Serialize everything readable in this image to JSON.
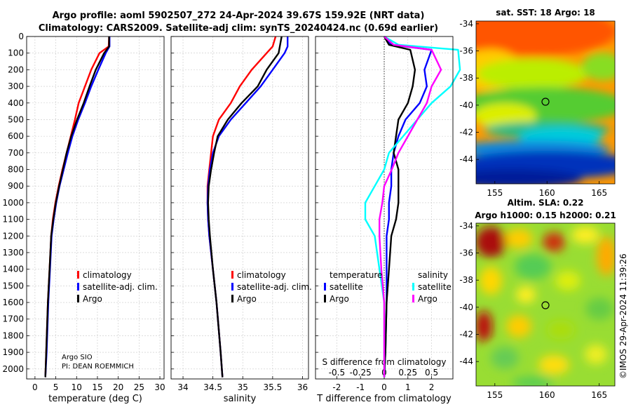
{
  "header": {
    "title_line1": "Argo profile: aoml 5902507_272 24-Apr-2024 39.67S 159.92E (NRT data)",
    "title_line2": "Climatology: CARS2009. Satellite-adj clim: synTS_20240424.nc (0.69d earlier)"
  },
  "credit": {
    "line1": "Argo SIO",
    "line2": "PI: DEAN ROEMMICH"
  },
  "timestamp": "©IMOS 29-Apr-2024 11:39:26",
  "colors": {
    "climatology": "#ff0000",
    "satellite": "#0000ff",
    "argo": "#000000",
    "sat_salinity": "#00ffff",
    "argo_salinity": "#ff00ff"
  },
  "chart_data": [
    {
      "type": "line",
      "title": "",
      "xlabel": "temperature (deg C)",
      "ylabel": "",
      "xlim": [
        -2,
        31
      ],
      "ylim": [
        2060,
        0
      ],
      "xticks": [
        "0",
        "5",
        "10",
        "15",
        "20",
        "25",
        "30"
      ],
      "yticks": [
        "0",
        "100",
        "200",
        "300",
        "400",
        "500",
        "600",
        "700",
        "800",
        "900",
        "1000",
        "1100",
        "1200",
        "1300",
        "1400",
        "1500",
        "1600",
        "1700",
        "1800",
        "1900",
        "2000"
      ],
      "legend": [
        "climatology",
        "satellite-adj. clim.",
        "Argo"
      ],
      "series": [
        {
          "name": "climatology",
          "x": [
            17.8,
            17.7,
            15.5,
            13.5,
            12.0,
            10.5,
            9.6,
            8.6,
            7.6,
            6.6,
            5.7,
            4.9,
            4.3,
            3.9,
            3.5,
            3.1,
            2.7,
            2.5
          ],
          "y": [
            0,
            60,
            100,
            200,
            300,
            400,
            500,
            600,
            700,
            800,
            900,
            1000,
            1100,
            1200,
            1400,
            1600,
            1900,
            2050
          ]
        },
        {
          "name": "satellite-adj. clim.",
          "x": [
            17.9,
            17.9,
            17.0,
            15.2,
            13.5,
            12.0,
            10.4,
            9.0,
            7.9,
            6.9,
            5.9,
            5.1,
            4.5,
            4.0,
            3.6,
            3.2,
            2.8,
            2.5
          ],
          "y": [
            0,
            60,
            100,
            200,
            300,
            400,
            500,
            600,
            700,
            800,
            900,
            1000,
            1100,
            1200,
            1400,
            1600,
            1900,
            2050
          ]
        },
        {
          "name": "Argo",
          "x": [
            17.8,
            17.8,
            16.6,
            14.6,
            13.1,
            11.7,
            10.1,
            8.7,
            7.6,
            6.7,
            5.8,
            5.0,
            4.4,
            3.9,
            3.5,
            3.1,
            2.7,
            2.5
          ],
          "y": [
            0,
            60,
            100,
            200,
            300,
            400,
            500,
            600,
            700,
            800,
            900,
            1000,
            1100,
            1200,
            1400,
            1600,
            1900,
            2050
          ]
        }
      ]
    },
    {
      "type": "line",
      "title": "",
      "xlabel": "salinity",
      "ylabel": "",
      "xlim": [
        33.8,
        36.1
      ],
      "ylim": [
        2060,
        0
      ],
      "xticks": [
        "34",
        "34.5",
        "35",
        "35.5",
        "36"
      ],
      "legend": [
        "climatology",
        "satellite-adj. clim.",
        "Argo"
      ],
      "series": [
        {
          "name": "climatology",
          "x": [
            35.55,
            35.5,
            35.4,
            35.15,
            34.95,
            34.8,
            34.6,
            34.5,
            34.47,
            34.44,
            34.41,
            34.41,
            34.42,
            34.44,
            34.5,
            34.56,
            34.63,
            34.66
          ],
          "y": [
            0,
            60,
            100,
            200,
            300,
            400,
            500,
            600,
            700,
            800,
            900,
            1000,
            1100,
            1200,
            1400,
            1600,
            1900,
            2050
          ]
        },
        {
          "name": "satellite-adj. clim.",
          "x": [
            35.75,
            35.75,
            35.7,
            35.5,
            35.3,
            35.05,
            34.8,
            34.6,
            34.5,
            34.45,
            34.42,
            34.41,
            34.42,
            34.44,
            34.5,
            34.56,
            34.63,
            34.66
          ],
          "y": [
            0,
            60,
            100,
            200,
            300,
            400,
            500,
            600,
            700,
            800,
            900,
            1000,
            1100,
            1200,
            1400,
            1600,
            1900,
            2050
          ]
        },
        {
          "name": "Argo",
          "x": [
            35.65,
            35.62,
            35.6,
            35.4,
            35.25,
            34.98,
            34.75,
            34.58,
            34.52,
            34.47,
            34.43,
            34.42,
            34.43,
            34.45,
            34.5,
            34.56,
            34.63,
            34.66
          ],
          "y": [
            0,
            60,
            100,
            200,
            300,
            400,
            500,
            600,
            700,
            800,
            900,
            1000,
            1100,
            1200,
            1400,
            1600,
            1900,
            2050
          ]
        }
      ]
    },
    {
      "type": "line",
      "title": "S difference from climatology",
      "xlabel": "T difference from climatology",
      "ylabel": "",
      "xlim": [
        -2.9,
        2.9
      ],
      "ylim": [
        2060,
        0
      ],
      "xticks": [
        "-2",
        "-1",
        "0",
        "1",
        "2"
      ],
      "secondary_xticks": [
        "-0.5",
        "-0.25",
        "0",
        "0.25",
        "0.5"
      ],
      "legend": [
        "temperature",
        "satellite",
        "Argo",
        "salinity",
        "satellite",
        "Argo"
      ],
      "series": [
        {
          "name": "temperature satellite",
          "x": [
            0.0,
            0.3,
            2.0,
            1.7,
            1.8,
            1.5,
            0.9,
            0.6,
            0.4,
            0.3,
            0.3,
            0.2,
            0.2,
            0.1,
            0.1,
            0.1,
            0.05,
            0.0
          ],
          "y": [
            0,
            50,
            80,
            200,
            300,
            400,
            500,
            600,
            700,
            800,
            900,
            1000,
            1100,
            1200,
            1400,
            1600,
            1900,
            2050
          ]
        },
        {
          "name": "temperature Argo",
          "x": [
            0.0,
            0.2,
            1.1,
            1.3,
            1.2,
            1.0,
            0.6,
            0.5,
            0.4,
            0.6,
            0.6,
            0.6,
            0.5,
            0.3,
            0.2,
            0.1,
            0.05,
            0.0
          ],
          "y": [
            0,
            50,
            80,
            200,
            300,
            400,
            500,
            600,
            700,
            800,
            900,
            1000,
            1100,
            1200,
            1400,
            1600,
            1900,
            2050
          ]
        },
        {
          "name": "salinity satellite",
          "x": [
            0.0,
            0.15,
            0.78,
            0.8,
            0.7,
            0.5,
            0.35,
            0.2,
            0.05,
            0.0,
            -0.1,
            -0.2,
            -0.2,
            -0.1,
            -0.05,
            0.0,
            0.0,
            0.0
          ],
          "y": [
            0,
            50,
            80,
            200,
            300,
            400,
            500,
            600,
            700,
            800,
            900,
            1000,
            1100,
            1200,
            1400,
            1600,
            1900,
            2050
          ]
        },
        {
          "name": "salinity Argo",
          "x": [
            0.0,
            0.1,
            0.5,
            0.6,
            0.5,
            0.45,
            0.35,
            0.25,
            0.15,
            0.08,
            0.0,
            -0.02,
            -0.05,
            -0.05,
            -0.03,
            0.0,
            0.0,
            0.0
          ],
          "y": [
            0,
            50,
            80,
            200,
            300,
            400,
            500,
            600,
            700,
            800,
            900,
            1000,
            1100,
            1200,
            1400,
            1600,
            1900,
            2050
          ]
        }
      ]
    },
    {
      "type": "heatmap",
      "title": "sat. SST: 18 Argo: 18",
      "xticks": [
        "155",
        "160",
        "165"
      ],
      "yticks": [
        "-34",
        "-36",
        "-38",
        "-40",
        "-42",
        "-44"
      ],
      "xlim": [
        153.2,
        166.5
      ],
      "ylim": [
        -45.8,
        -33.8
      ],
      "marker": {
        "lon": 159.92,
        "lat": -39.67
      }
    },
    {
      "type": "heatmap",
      "title": "Altim. SLA: 0.22",
      "subtitle": "Argo h1000: 0.15 h2000: 0.21",
      "xticks": [
        "155",
        "160",
        "165"
      ],
      "yticks": [
        "-34",
        "-36",
        "-38",
        "-40",
        "-42",
        "-44"
      ],
      "xlim": [
        153.2,
        166.5
      ],
      "ylim": [
        -45.8,
        -33.8
      ],
      "marker": {
        "lon": 159.92,
        "lat": -39.67
      }
    }
  ]
}
